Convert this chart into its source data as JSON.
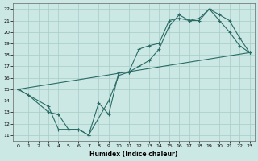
{
  "xlabel": "Humidex (Indice chaleur)",
  "bg_color": "#cce8e4",
  "grid_color": "#a8ccc8",
  "line_color": "#2a6b65",
  "xlim": [
    -0.5,
    23.5
  ],
  "ylim": [
    10.5,
    22.5
  ],
  "xticks": [
    0,
    1,
    2,
    3,
    4,
    5,
    6,
    7,
    8,
    9,
    10,
    11,
    12,
    13,
    14,
    15,
    16,
    17,
    18,
    19,
    20,
    21,
    22,
    23
  ],
  "yticks": [
    11,
    12,
    13,
    14,
    15,
    16,
    17,
    18,
    19,
    20,
    21,
    22
  ],
  "line1_x": [
    0,
    1,
    3,
    4,
    5,
    6,
    7,
    8,
    9,
    10,
    11,
    12,
    13,
    14,
    15,
    16,
    17,
    18,
    19,
    20,
    21,
    22,
    23
  ],
  "line1_y": [
    15,
    14.5,
    13,
    12.8,
    11.5,
    11.5,
    11,
    13.8,
    12.8,
    16.5,
    16.5,
    18.5,
    18.8,
    19,
    21,
    21.2,
    21,
    21.2,
    22,
    21,
    20,
    18.8,
    18.2
  ],
  "line2_x": [
    0,
    3,
    4,
    5,
    6,
    7,
    9,
    10,
    11,
    12,
    13,
    14,
    15,
    16,
    17,
    18,
    19,
    20,
    21,
    22,
    23
  ],
  "line2_y": [
    15,
    13.5,
    11.5,
    11.5,
    11.5,
    11,
    14,
    16.2,
    16.5,
    17,
    17.5,
    18.5,
    20.5,
    21.5,
    21,
    21,
    22,
    21.5,
    21,
    19.5,
    18.2
  ],
  "line3_x": [
    0,
    23
  ],
  "line3_y": [
    15,
    18.2
  ]
}
